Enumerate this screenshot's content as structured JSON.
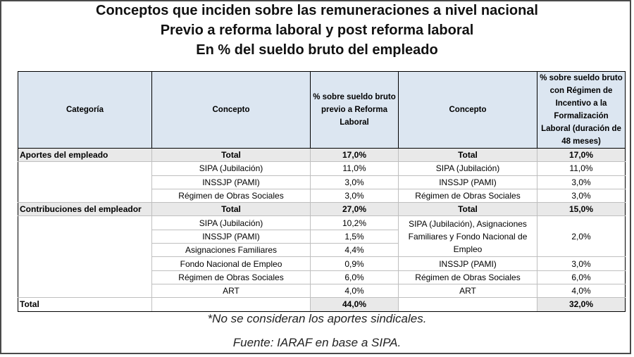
{
  "title": {
    "line1": "Conceptos que inciden sobre las remuneraciones a nivel nacional",
    "line2": "Previo a reforma laboral y post reforma laboral",
    "line3": "En % del sueldo bruto del empleado"
  },
  "headers": {
    "categoria": "Categoría",
    "concepto_previo": "Concepto",
    "pct_previo": "% sobre sueldo bruto previo a Reforma Laboral",
    "concepto_post": "Concepto",
    "pct_post": "% sobre sueldo bruto con Régimen de Incentivo a la Formalización Laboral (duración de 48 meses)"
  },
  "aportes": {
    "category": "Aportes del empleado",
    "rows": [
      {
        "c1": "Total",
        "v1": "17,0%",
        "c2": "Total",
        "v2": "17,0%"
      },
      {
        "c1": "SIPA (Jubilación)",
        "v1": "11,0%",
        "c2": "SIPA (Jubilación)",
        "v2": "11,0%"
      },
      {
        "c1": "INSSJP (PAMI)",
        "v1": "3,0%",
        "c2": "INSSJP (PAMI)",
        "v2": "3,0%"
      },
      {
        "c1": "Régimen de Obras Sociales",
        "v1": "3,0%",
        "c2": "Régimen de Obras Sociales",
        "v2": "3,0%"
      }
    ]
  },
  "contribuciones": {
    "category": "Contribuciones del empleador",
    "total": {
      "c1": "Total",
      "v1": "27,0%",
      "c2": "Total",
      "v2": "15,0%"
    },
    "left_rows": [
      {
        "concept": "SIPA (Jubilación)",
        "value": "10,2%"
      },
      {
        "concept": "INSSJP (PAMI)",
        "value": "1,5%"
      },
      {
        "concept": "Asignaciones Familiares",
        "value": "4,4%"
      },
      {
        "concept": "Fondo Nacional de Empleo",
        "value": "0,9%"
      },
      {
        "concept": "Régimen de Obras Sociales",
        "value": "6,0%"
      },
      {
        "concept": "ART",
        "value": "4,0%"
      }
    ],
    "right_merged": {
      "concept": "SIPA (Jubilación), Asignaciones Familiares y Fondo Nacional de Empleo",
      "value": "2,0%"
    },
    "right_rows": [
      {
        "concept": "INSSJP (PAMI)",
        "value": "3,0%"
      },
      {
        "concept": "Régimen de Obras Sociales",
        "value": "6,0%"
      },
      {
        "concept": "ART",
        "value": "4,0%"
      }
    ]
  },
  "total_row": {
    "label": "Total",
    "v1": "44,0%",
    "v2": "32,0%"
  },
  "notes": {
    "note1": "*No se consideran los aportes sindicales.",
    "note2": "Fuente: IARAF en base a SIPA."
  }
}
